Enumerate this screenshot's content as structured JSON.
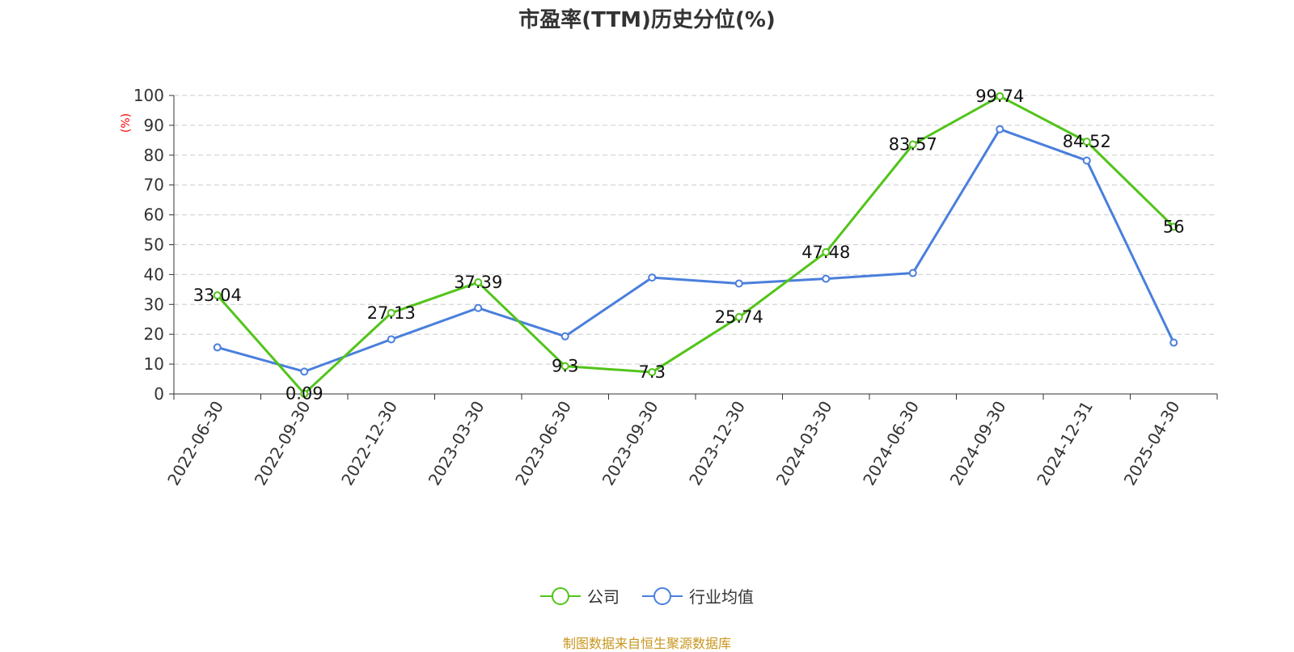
{
  "chart_data": {
    "type": "line",
    "title": "市盈率(TTM)历史分位(%)",
    "ylabel": "(%)",
    "ylim": [
      0,
      100
    ],
    "yticks": [
      0,
      10,
      20,
      30,
      40,
      50,
      60,
      70,
      80,
      90,
      100
    ],
    "categories": [
      "2022-06-30",
      "2022-09-30",
      "2022-12-30",
      "2023-03-30",
      "2023-06-30",
      "2023-09-30",
      "2023-12-30",
      "2024-03-30",
      "2024-06-30",
      "2024-09-30",
      "2024-12-31",
      "2025-04-30"
    ],
    "series": [
      {
        "name": "公司",
        "color": "#52c41a",
        "labels_shown": true,
        "values": [
          33.04,
          0.09,
          27.13,
          37.39,
          9.3,
          7.3,
          25.74,
          47.48,
          83.57,
          99.74,
          84.52,
          56
        ]
      },
      {
        "name": "行业均值",
        "color": "#4a7fdc",
        "labels_shown": false,
        "values": [
          15.6,
          7.5,
          18.3,
          28.8,
          19.3,
          39.0,
          37.0,
          38.6,
          40.5,
          88.7,
          78.2,
          17.2
        ]
      }
    ],
    "grid": true,
    "legend_position": "bottom-center"
  },
  "source_note": "制图数据来自恒生聚源数据库"
}
